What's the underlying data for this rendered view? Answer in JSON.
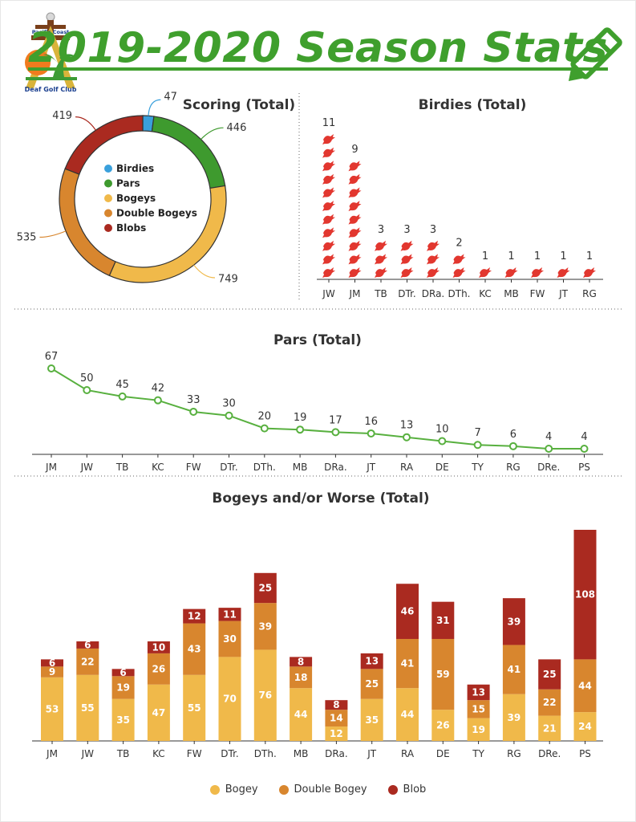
{
  "header": {
    "title": "2019-2020 Season Stats",
    "logo": {
      "line1": "Pacific Coast",
      "line2": "Deaf Golf Club"
    },
    "pencil_icon": "pencil-icon"
  },
  "colors": {
    "title_green": "#3f9f2d",
    "birdies": "#3aa0dc",
    "pars": "#3e9a2e",
    "bogey": "#f0b94a",
    "double_bogey": "#d8862e",
    "blob": "#aa2a20",
    "bird_icon": "#e2372f",
    "line": "#58b03f"
  },
  "chart_data": [
    {
      "type": "pie",
      "style": "donut",
      "title": "Scoring (Total)",
      "legend_position": "center",
      "slices": [
        {
          "name": "Birdies",
          "value": 47,
          "color": "#3aa0dc"
        },
        {
          "name": "Pars",
          "value": 446,
          "color": "#3e9a2e"
        },
        {
          "name": "Bogeys",
          "value": 749,
          "color": "#f0b94a"
        },
        {
          "name": "Double Bogeys",
          "value": 535,
          "color": "#d8862e"
        },
        {
          "name": "Blobs",
          "value": 419,
          "color": "#aa2a20"
        }
      ]
    },
    {
      "type": "bar",
      "style": "pictogram",
      "title": "Birdies (Total)",
      "icon": "bird-icon",
      "categories": [
        "JW",
        "JM",
        "TB",
        "DTr.",
        "DRa.",
        "DTh.",
        "KC",
        "MB",
        "FW",
        "JT",
        "RG"
      ],
      "values": [
        11,
        9,
        3,
        3,
        3,
        2,
        1,
        1,
        1,
        1,
        1
      ]
    },
    {
      "type": "line",
      "title": "Pars (Total)",
      "categories": [
        "JM",
        "JW",
        "TB",
        "KC",
        "FW",
        "DTr.",
        "DTh.",
        "MB",
        "DRa.",
        "JT",
        "RA",
        "DE",
        "TY",
        "RG",
        "DRe.",
        "PS"
      ],
      "values": [
        67,
        50,
        45,
        42,
        33,
        30,
        20,
        19,
        17,
        16,
        13,
        10,
        7,
        6,
        4,
        4
      ],
      "ylim": [
        0,
        70
      ]
    },
    {
      "type": "bar",
      "style": "stacked",
      "title": "Bogeys and/or Worse (Total)",
      "legend_position": "bottom",
      "categories": [
        "JM",
        "JW",
        "TB",
        "KC",
        "FW",
        "DTr.",
        "DTh.",
        "MB",
        "DRa.",
        "JT",
        "RA",
        "DE",
        "TY",
        "RG",
        "DRe.",
        "PS"
      ],
      "series": [
        {
          "name": "Bogey",
          "color": "#f0b94a",
          "values": [
            53,
            55,
            35,
            47,
            55,
            70,
            76,
            44,
            12,
            35,
            44,
            26,
            19,
            39,
            21,
            24
          ]
        },
        {
          "name": "Double Bogey",
          "color": "#d8862e",
          "values": [
            9,
            22,
            19,
            26,
            43,
            30,
            39,
            18,
            14,
            25,
            41,
            59,
            15,
            41,
            22,
            44
          ]
        },
        {
          "name": "Blob",
          "color": "#aa2a20",
          "values": [
            6,
            6,
            6,
            10,
            12,
            11,
            25,
            8,
            8,
            13,
            46,
            31,
            13,
            39,
            25,
            108
          ]
        }
      ],
      "ylim": [
        0,
        180
      ]
    }
  ]
}
